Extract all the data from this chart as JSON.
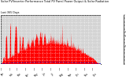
{
  "title_line1": "Solar PV/Inverter Performance Total PV Panel Power Output & Solar Radiation",
  "title_line2": "Last 365 Days",
  "bg_color": "#ffffff",
  "plot_bg_color": "#d4d4d4",
  "grid_color": "#ffffff",
  "bar_color": "#ff0000",
  "line_color": "#0000cc",
  "ylim": [
    0,
    14000
  ],
  "n_points": 365,
  "y_tick_vals": [
    0,
    1000,
    2000,
    3000,
    4000,
    5000,
    6000,
    7000,
    8000,
    9000,
    10000,
    11000,
    12000,
    13000,
    14000
  ],
  "y_tick_labels": [
    "0",
    "1k",
    "2k",
    "3k",
    "4k",
    "5k",
    "6k",
    "7k",
    "8k",
    "9k",
    "10k",
    "11k",
    "12k",
    "13k",
    "14k"
  ]
}
